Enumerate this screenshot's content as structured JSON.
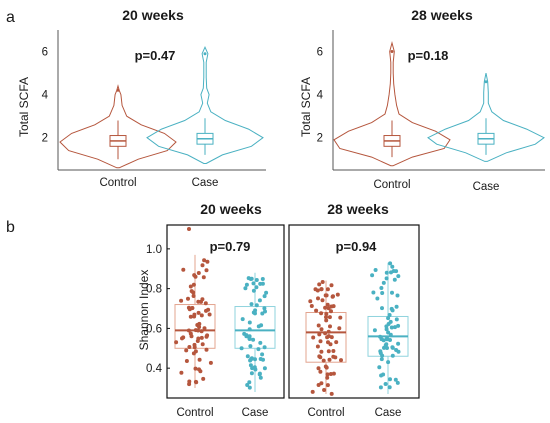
{
  "panel_labels": {
    "a": "a",
    "b": "b"
  },
  "colors": {
    "control": "#b5563d",
    "case": "#4ab1c2",
    "control_box": "#e3a48f",
    "case_box": "#8fd3de"
  },
  "chart_data": [
    {
      "type": "violin",
      "panel": "a",
      "title": "20 weeks",
      "annotation": "p=0.47",
      "ylabel": "Total SCFA",
      "ylim": [
        0.5,
        7
      ],
      "yticks": [
        2,
        4,
        6
      ],
      "categories": [
        "Control",
        "Case"
      ],
      "groups": [
        {
          "category": "Control",
          "min": 1.0,
          "q1": 1.6,
          "median": 1.85,
          "q3": 2.1,
          "max": 2.8,
          "density": [
            [
              0.6,
              0.02
            ],
            [
              1.0,
              0.35
            ],
            [
              1.4,
              0.85
            ],
            [
              1.8,
              1.0
            ],
            [
              2.2,
              0.8
            ],
            [
              2.6,
              0.4
            ],
            [
              3.0,
              0.15
            ],
            [
              3.5,
              0.07
            ],
            [
              4.0,
              0.05
            ],
            [
              4.2,
              0.02
            ],
            [
              4.4,
              0.0
            ]
          ]
        },
        {
          "category": "Case",
          "min": 1.2,
          "q1": 1.7,
          "median": 1.95,
          "q3": 2.2,
          "max": 2.9,
          "density": [
            [
              0.8,
              0.02
            ],
            [
              1.2,
              0.3
            ],
            [
              1.6,
              0.8
            ],
            [
              2.0,
              1.0
            ],
            [
              2.4,
              0.75
            ],
            [
              2.8,
              0.35
            ],
            [
              3.2,
              0.1
            ],
            [
              3.6,
              0.04
            ],
            [
              4.0,
              0.07
            ],
            [
              4.3,
              0.03
            ],
            [
              4.8,
              0.02
            ],
            [
              5.5,
              0.02
            ],
            [
              5.9,
              0.05
            ],
            [
              6.2,
              0.0
            ]
          ]
        }
      ]
    },
    {
      "type": "violin",
      "panel": "a",
      "title": "28 weeks",
      "annotation": "p=0.18",
      "ylabel": "Total SCFA",
      "ylim": [
        0.5,
        7
      ],
      "yticks": [
        2,
        4,
        6
      ],
      "categories": [
        "Control",
        "Case"
      ],
      "groups": [
        {
          "category": "Control",
          "min": 1.1,
          "q1": 1.6,
          "median": 1.85,
          "q3": 2.1,
          "max": 2.8,
          "density": [
            [
              0.7,
              0.02
            ],
            [
              1.1,
              0.35
            ],
            [
              1.5,
              0.9
            ],
            [
              1.9,
              1.0
            ],
            [
              2.3,
              0.75
            ],
            [
              2.7,
              0.35
            ],
            [
              3.1,
              0.12
            ],
            [
              3.5,
              0.08
            ],
            [
              4.0,
              0.05
            ],
            [
              4.5,
              0.03
            ],
            [
              5.0,
              0.02
            ],
            [
              5.5,
              0.02
            ],
            [
              6.0,
              0.04
            ],
            [
              6.4,
              0.0
            ]
          ]
        },
        {
          "category": "Case",
          "min": 1.2,
          "q1": 1.7,
          "median": 1.95,
          "q3": 2.2,
          "max": 2.9,
          "density": [
            [
              0.9,
              0.02
            ],
            [
              1.3,
              0.35
            ],
            [
              1.7,
              0.85
            ],
            [
              2.0,
              1.0
            ],
            [
              2.4,
              0.7
            ],
            [
              2.8,
              0.3
            ],
            [
              3.2,
              0.1
            ],
            [
              3.6,
              0.04
            ],
            [
              4.1,
              0.04
            ],
            [
              4.6,
              0.03
            ],
            [
              5.0,
              0.0
            ]
          ]
        }
      ]
    },
    {
      "type": "box",
      "panel": "b",
      "title": "20 weeks",
      "annotation": "p=0.79",
      "ylabel": "Shannon Index",
      "ylim": [
        0.25,
        1.12
      ],
      "yticks": [
        0.4,
        0.6,
        0.8,
        1.0
      ],
      "categories": [
        "Control",
        "Case"
      ],
      "groups": [
        {
          "category": "Control",
          "min": 0.3,
          "q1": 0.5,
          "median": 0.59,
          "q3": 0.72,
          "max": 0.97,
          "n": 70,
          "outliers": [
            1.1
          ]
        },
        {
          "category": "Case",
          "min": 0.28,
          "q1": 0.5,
          "median": 0.59,
          "q3": 0.71,
          "max": 0.88,
          "n": 60,
          "outliers": []
        }
      ]
    },
    {
      "type": "box",
      "panel": "b",
      "title": "28 weeks",
      "annotation": "p=0.94",
      "ylabel": "",
      "ylim": [
        0.25,
        1.12
      ],
      "yticks": [],
      "categories": [
        "Control",
        "Case"
      ],
      "groups": [
        {
          "category": "Control",
          "min": 0.27,
          "q1": 0.43,
          "median": 0.58,
          "q3": 0.68,
          "max": 0.84,
          "n": 70,
          "outliers": []
        },
        {
          "category": "Case",
          "min": 0.27,
          "q1": 0.46,
          "median": 0.56,
          "q3": 0.66,
          "max": 0.93,
          "n": 65,
          "outliers": []
        }
      ]
    }
  ]
}
